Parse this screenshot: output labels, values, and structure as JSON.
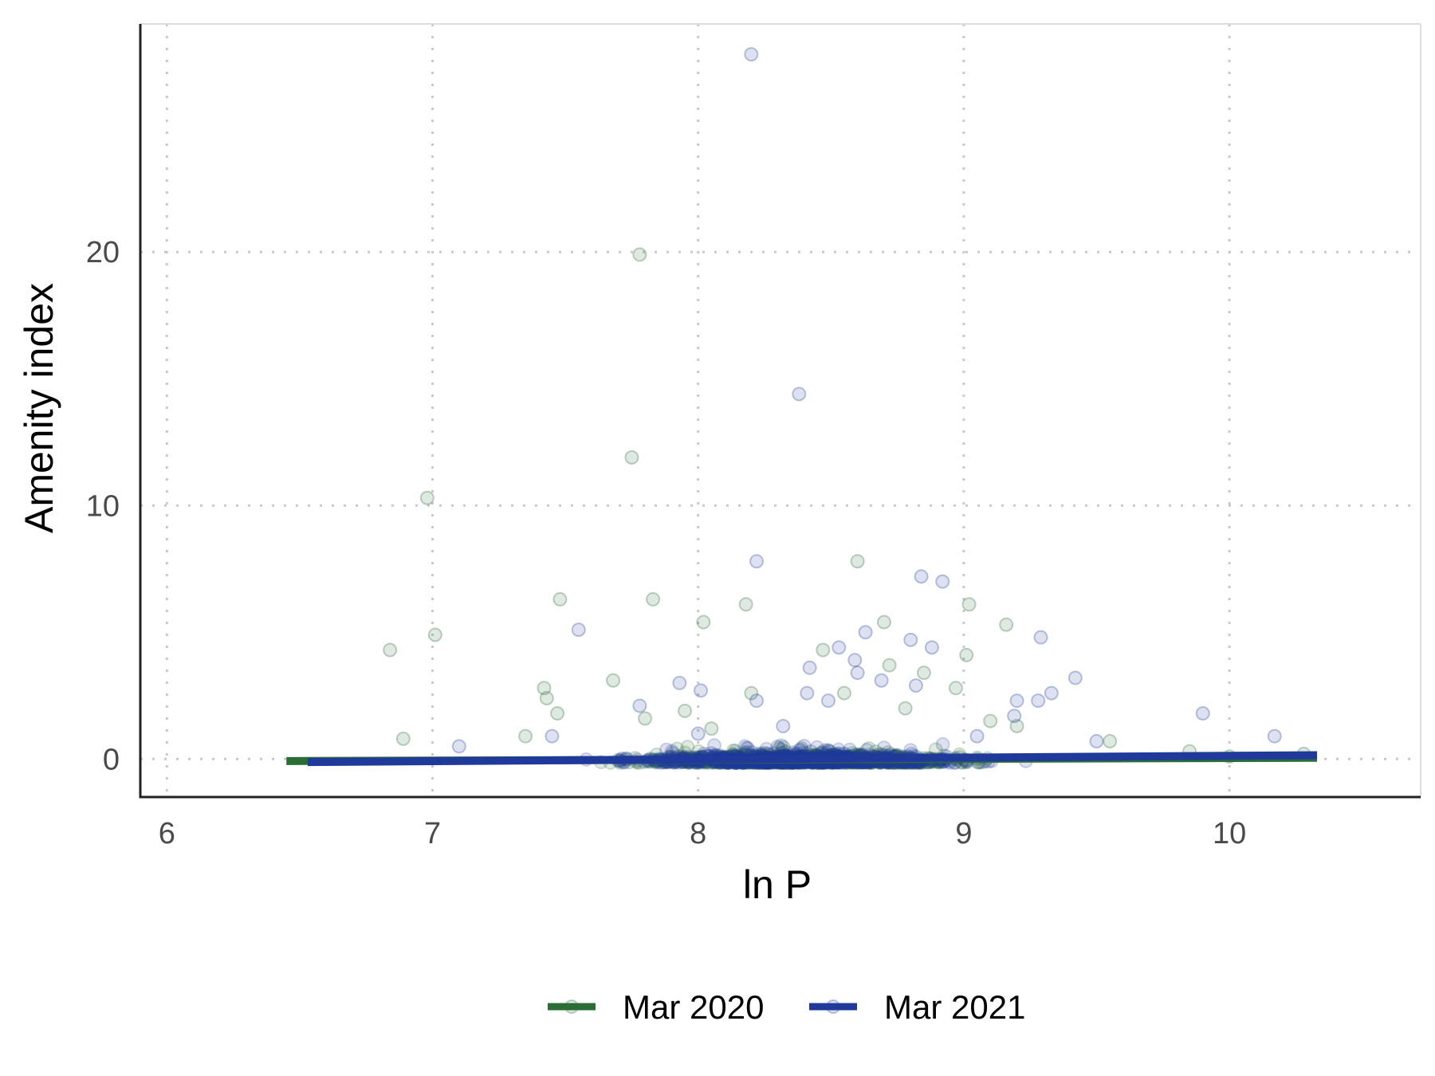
{
  "chart_data": {
    "type": "scatter",
    "title": "",
    "xlabel": "ln P",
    "ylabel": "Amenity index",
    "xlim": [
      5.9,
      10.72
    ],
    "ylim": [
      -1.5,
      29
    ],
    "x_ticks": [
      6,
      7,
      8,
      9,
      10
    ],
    "y_ticks": [
      0,
      10,
      20
    ],
    "grid": true,
    "legend_position": "bottom",
    "series": [
      {
        "name": "Mar 2020",
        "color": "#2b6e35",
        "point_opacity": 0.15,
        "fit_line": {
          "x": [
            6.45,
            10.33
          ],
          "y": [
            -0.08,
            0.05
          ]
        },
        "outliers": [
          {
            "x": 6.98,
            "y": 10.3
          },
          {
            "x": 7.78,
            "y": 19.9
          },
          {
            "x": 7.75,
            "y": 11.9
          },
          {
            "x": 7.48,
            "y": 6.3
          },
          {
            "x": 7.83,
            "y": 6.3
          },
          {
            "x": 8.18,
            "y": 6.1
          },
          {
            "x": 8.6,
            "y": 7.8
          },
          {
            "x": 6.84,
            "y": 4.3
          },
          {
            "x": 7.01,
            "y": 4.9
          },
          {
            "x": 8.02,
            "y": 5.4
          },
          {
            "x": 8.7,
            "y": 5.4
          },
          {
            "x": 9.02,
            "y": 6.1
          },
          {
            "x": 9.16,
            "y": 5.3
          },
          {
            "x": 9.01,
            "y": 4.1
          },
          {
            "x": 7.68,
            "y": 3.1
          },
          {
            "x": 8.47,
            "y": 4.3
          },
          {
            "x": 8.72,
            "y": 3.7
          },
          {
            "x": 8.85,
            "y": 3.4
          },
          {
            "x": 7.42,
            "y": 2.8
          },
          {
            "x": 7.43,
            "y": 2.4
          },
          {
            "x": 7.47,
            "y": 1.8
          },
          {
            "x": 8.2,
            "y": 2.6
          },
          {
            "x": 8.55,
            "y": 2.6
          },
          {
            "x": 8.97,
            "y": 2.8
          },
          {
            "x": 8.78,
            "y": 2.0
          },
          {
            "x": 9.1,
            "y": 1.5
          },
          {
            "x": 9.2,
            "y": 1.3
          },
          {
            "x": 6.89,
            "y": 0.8
          },
          {
            "x": 7.35,
            "y": 0.9
          },
          {
            "x": 7.8,
            "y": 1.6
          },
          {
            "x": 7.95,
            "y": 1.9
          },
          {
            "x": 8.05,
            "y": 1.2
          },
          {
            "x": 9.55,
            "y": 0.7
          },
          {
            "x": 9.85,
            "y": 0.3
          },
          {
            "x": 10.0,
            "y": 0.1
          },
          {
            "x": 10.28,
            "y": 0.2
          }
        ]
      },
      {
        "name": "Mar 2021",
        "color": "#1f3a9a",
        "point_opacity": 0.15,
        "fit_line": {
          "x": [
            6.53,
            10.33
          ],
          "y": [
            -0.12,
            0.15
          ]
        },
        "outliers": [
          {
            "x": 8.2,
            "y": 27.8
          },
          {
            "x": 8.38,
            "y": 14.4
          },
          {
            "x": 8.22,
            "y": 7.8
          },
          {
            "x": 8.84,
            "y": 7.2
          },
          {
            "x": 8.92,
            "y": 7.0
          },
          {
            "x": 7.55,
            "y": 5.1
          },
          {
            "x": 8.63,
            "y": 5.0
          },
          {
            "x": 8.8,
            "y": 4.7
          },
          {
            "x": 9.29,
            "y": 4.8
          },
          {
            "x": 8.53,
            "y": 4.4
          },
          {
            "x": 8.88,
            "y": 4.4
          },
          {
            "x": 8.42,
            "y": 3.6
          },
          {
            "x": 8.59,
            "y": 3.9
          },
          {
            "x": 8.6,
            "y": 3.4
          },
          {
            "x": 7.93,
            "y": 3.0
          },
          {
            "x": 8.69,
            "y": 3.1
          },
          {
            "x": 9.42,
            "y": 3.2
          },
          {
            "x": 8.82,
            "y": 2.9
          },
          {
            "x": 8.01,
            "y": 2.7
          },
          {
            "x": 8.41,
            "y": 2.6
          },
          {
            "x": 9.33,
            "y": 2.6
          },
          {
            "x": 8.22,
            "y": 2.3
          },
          {
            "x": 9.2,
            "y": 2.3
          },
          {
            "x": 7.78,
            "y": 2.1
          },
          {
            "x": 8.49,
            "y": 2.3
          },
          {
            "x": 9.28,
            "y": 2.3
          },
          {
            "x": 9.19,
            "y": 1.7
          },
          {
            "x": 9.9,
            "y": 1.8
          },
          {
            "x": 10.17,
            "y": 0.9
          },
          {
            "x": 7.45,
            "y": 0.9
          },
          {
            "x": 7.1,
            "y": 0.5
          },
          {
            "x": 9.5,
            "y": 0.7
          },
          {
            "x": 8.32,
            "y": 1.3
          },
          {
            "x": 8.0,
            "y": 1.0
          },
          {
            "x": 9.05,
            "y": 0.9
          }
        ]
      }
    ]
  }
}
